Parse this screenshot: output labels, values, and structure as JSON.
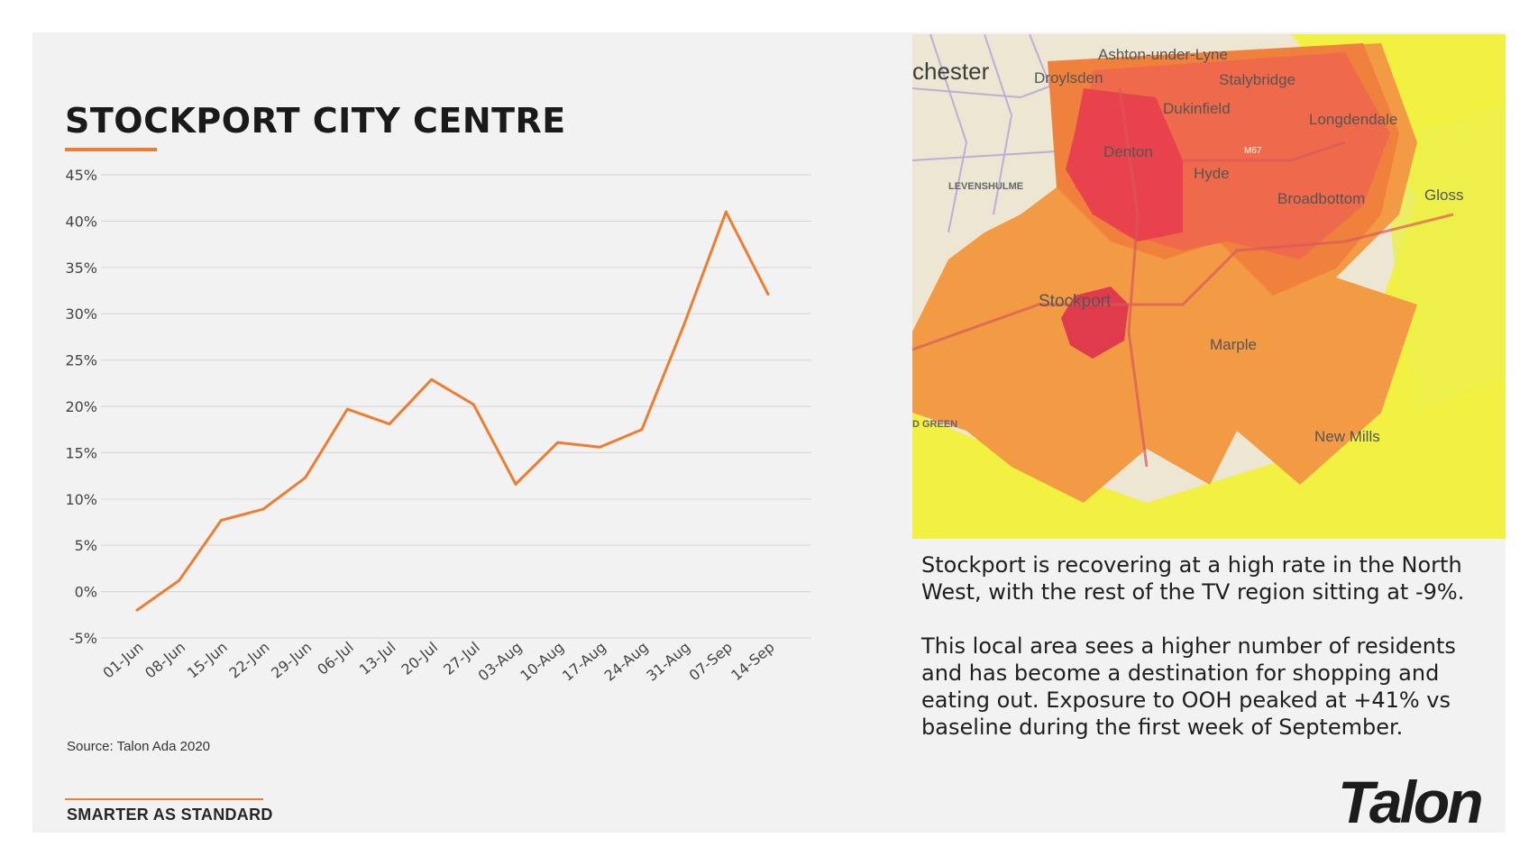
{
  "slide": {
    "title": "STOCKPORT CITY CENTRE",
    "source": "Source: Talon Ada 2020",
    "tagline": "SMARTER AS STANDARD",
    "logo": "Talon",
    "accent_color": "#ed7d31"
  },
  "description": {
    "paragraph1": "Stockport is recovering at a high rate in the North West, with the rest of the TV region sitting at -9%.",
    "paragraph2": "This local area sees a higher number of residents and has become a destination for shopping and eating out. Exposure to OOH peaked at +41% vs baseline during the first week of September."
  },
  "map": {
    "labels": {
      "manchester": "chester",
      "droylsden": "Droylsden",
      "ashton": "Ashton-under-Lyne",
      "stalybridge": "Stalybridge",
      "dukinfield": "Dukinfield",
      "longdendale": "Longdendale",
      "denton": "Denton",
      "hyde": "Hyde",
      "levenshulme": "LEVENSHULME",
      "broadbottom": "Broadbottom",
      "glossop": "Gloss",
      "stockport": "Stockport",
      "marple": "Marple",
      "heald_green": "D GREEN",
      "new_mills": "New Mills",
      "m67": "M67"
    }
  },
  "chart_data": {
    "type": "line",
    "title": "STOCKPORT CITY CENTRE",
    "categories": [
      "01-Jun",
      "08-Jun",
      "15-Jun",
      "22-Jun",
      "29-Jun",
      "06-Jul",
      "13-Jul",
      "20-Jul",
      "27-Jul",
      "03-Aug",
      "10-Aug",
      "17-Aug",
      "24-Aug",
      "31-Aug",
      "07-Sep",
      "14-Sep"
    ],
    "series": [
      {
        "values": [
          -2.0,
          1.2,
          7.7,
          8.9,
          12.3,
          19.7,
          18.1,
          22.9,
          20.2,
          11.6,
          16.1,
          15.6,
          17.5,
          28.8,
          41.0,
          32.1
        ]
      }
    ],
    "y_ticks": [
      "45%",
      "40%",
      "35%",
      "30%",
      "25%",
      "20%",
      "15%",
      "10%",
      "5%",
      "0%",
      "-5%"
    ],
    "ylim": [
      -5,
      45
    ],
    "y_step": 5,
    "line_color": "#ed7d31",
    "grid": true,
    "legend": false
  }
}
